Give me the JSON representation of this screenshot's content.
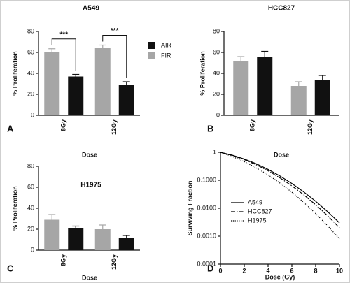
{
  "chart_data": [
    {
      "type": "bar",
      "title": "A549",
      "xlabel": "Dose",
      "ylabel": "% Proliferation",
      "panel": "A",
      "categories": [
        "8Gy",
        "12Gy"
      ],
      "series": [
        {
          "name": "AIR",
          "color": "#111111",
          "values": [
            37,
            29
          ],
          "error": [
            2,
            3
          ]
        },
        {
          "name": "FIR",
          "color": "#a6a6a6",
          "values": [
            60,
            64
          ],
          "error": [
            3.5,
            3
          ]
        }
      ],
      "annotations": [
        "***",
        "***"
      ],
      "ylim": [
        0,
        80
      ],
      "yticks": [
        0,
        20,
        40,
        60,
        80
      ],
      "legend": true
    },
    {
      "type": "bar",
      "title": "HCC827",
      "xlabel": "Dose",
      "ylabel": "% Proliferation",
      "panel": "B",
      "categories": [
        "8Gy",
        "12Gy"
      ],
      "series": [
        {
          "name": "AIR",
          "color": "#111111",
          "values": [
            56,
            34
          ],
          "error": [
            5,
            4
          ]
        },
        {
          "name": "FIR",
          "color": "#a6a6a6",
          "values": [
            52,
            28
          ],
          "error": [
            4,
            4
          ]
        }
      ],
      "ylim": [
        0,
        80
      ],
      "yticks": [
        0,
        20,
        40,
        60,
        80
      ],
      "legend": false
    },
    {
      "type": "bar",
      "title": "H1975",
      "xlabel": "Dose",
      "ylabel": "% Proliferation",
      "panel": "C",
      "categories": [
        "8Gy",
        "12Gy"
      ],
      "series": [
        {
          "name": "AIR",
          "color": "#111111",
          "values": [
            21,
            12
          ],
          "error": [
            2,
            2
          ]
        },
        {
          "name": "FIR",
          "color": "#a6a6a6",
          "values": [
            29,
            20
          ],
          "error": [
            5,
            4
          ]
        }
      ],
      "ylim": [
        0,
        80
      ],
      "yticks": [
        0,
        20,
        40,
        60,
        80
      ],
      "legend": false
    },
    {
      "type": "line",
      "xlabel": "Dose (Gy)",
      "ylabel": "Surviving Fraction",
      "panel": "D",
      "x": [
        0,
        1,
        2,
        3,
        4,
        5,
        6,
        7,
        8,
        9,
        10
      ],
      "series": [
        {
          "name": "A549",
          "color": "#000000",
          "dash": "solid",
          "values": [
            1,
            0.788,
            0.576,
            0.39,
            0.245,
            0.142,
            0.0767,
            0.0383,
            0.0177,
            0.0076,
            0.003
          ]
        },
        {
          "name": "HCC827",
          "color": "#000000",
          "dash": "dashdot",
          "values": [
            1,
            0.771,
            0.549,
            0.361,
            0.219,
            0.122,
            0.0633,
            0.0302,
            0.0133,
            0.0054,
            0.002
          ]
        },
        {
          "name": "H1975",
          "color": "#000000",
          "dash": "dotted",
          "values": [
            1,
            0.711,
            0.465,
            0.28,
            0.156,
            0.0794,
            0.0374,
            0.0162,
            0.00646,
            0.00237,
            0.0008
          ]
        }
      ],
      "xlim": [
        0,
        10
      ],
      "xticks": [
        0,
        2,
        4,
        6,
        8,
        10
      ],
      "ylim": [
        0.0001,
        1
      ],
      "ylog": true,
      "yticks": [
        0.0001,
        {
          "value": 0.001,
          "label": "0.0010"
        },
        {
          "value": 0.01,
          "label": "0.0100"
        },
        {
          "value": 0.1,
          "label": "0.1000"
        },
        1
      ],
      "legend": true
    }
  ]
}
